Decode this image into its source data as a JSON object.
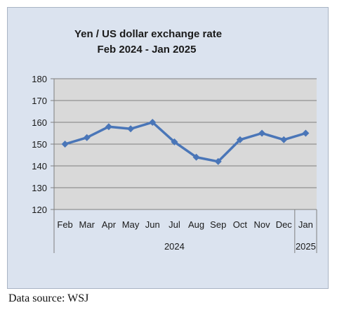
{
  "chart_data": {
    "type": "line",
    "title": "Yen / US dollar exchange rate",
    "subtitle": "Feb 2024 - Jan 2025",
    "categories": [
      "Feb",
      "Mar",
      "Apr",
      "May",
      "Jun",
      "Jul",
      "Aug",
      "Sep",
      "Oct",
      "Nov",
      "Dec",
      "Jan"
    ],
    "year_groups": [
      {
        "label": "2024",
        "span": 11
      },
      {
        "label": "2025",
        "span": 1
      }
    ],
    "series": [
      {
        "values": [
          150,
          153,
          158,
          157,
          160,
          151,
          144,
          142,
          152,
          155,
          152,
          155
        ],
        "color": "#4a76b8"
      }
    ],
    "ylim": [
      120,
      180
    ],
    "yticks": [
      120,
      130,
      140,
      150,
      160,
      170,
      180
    ],
    "grid": true,
    "plot_background": "#d9d9d9"
  },
  "source_note": "Data source: WSJ"
}
